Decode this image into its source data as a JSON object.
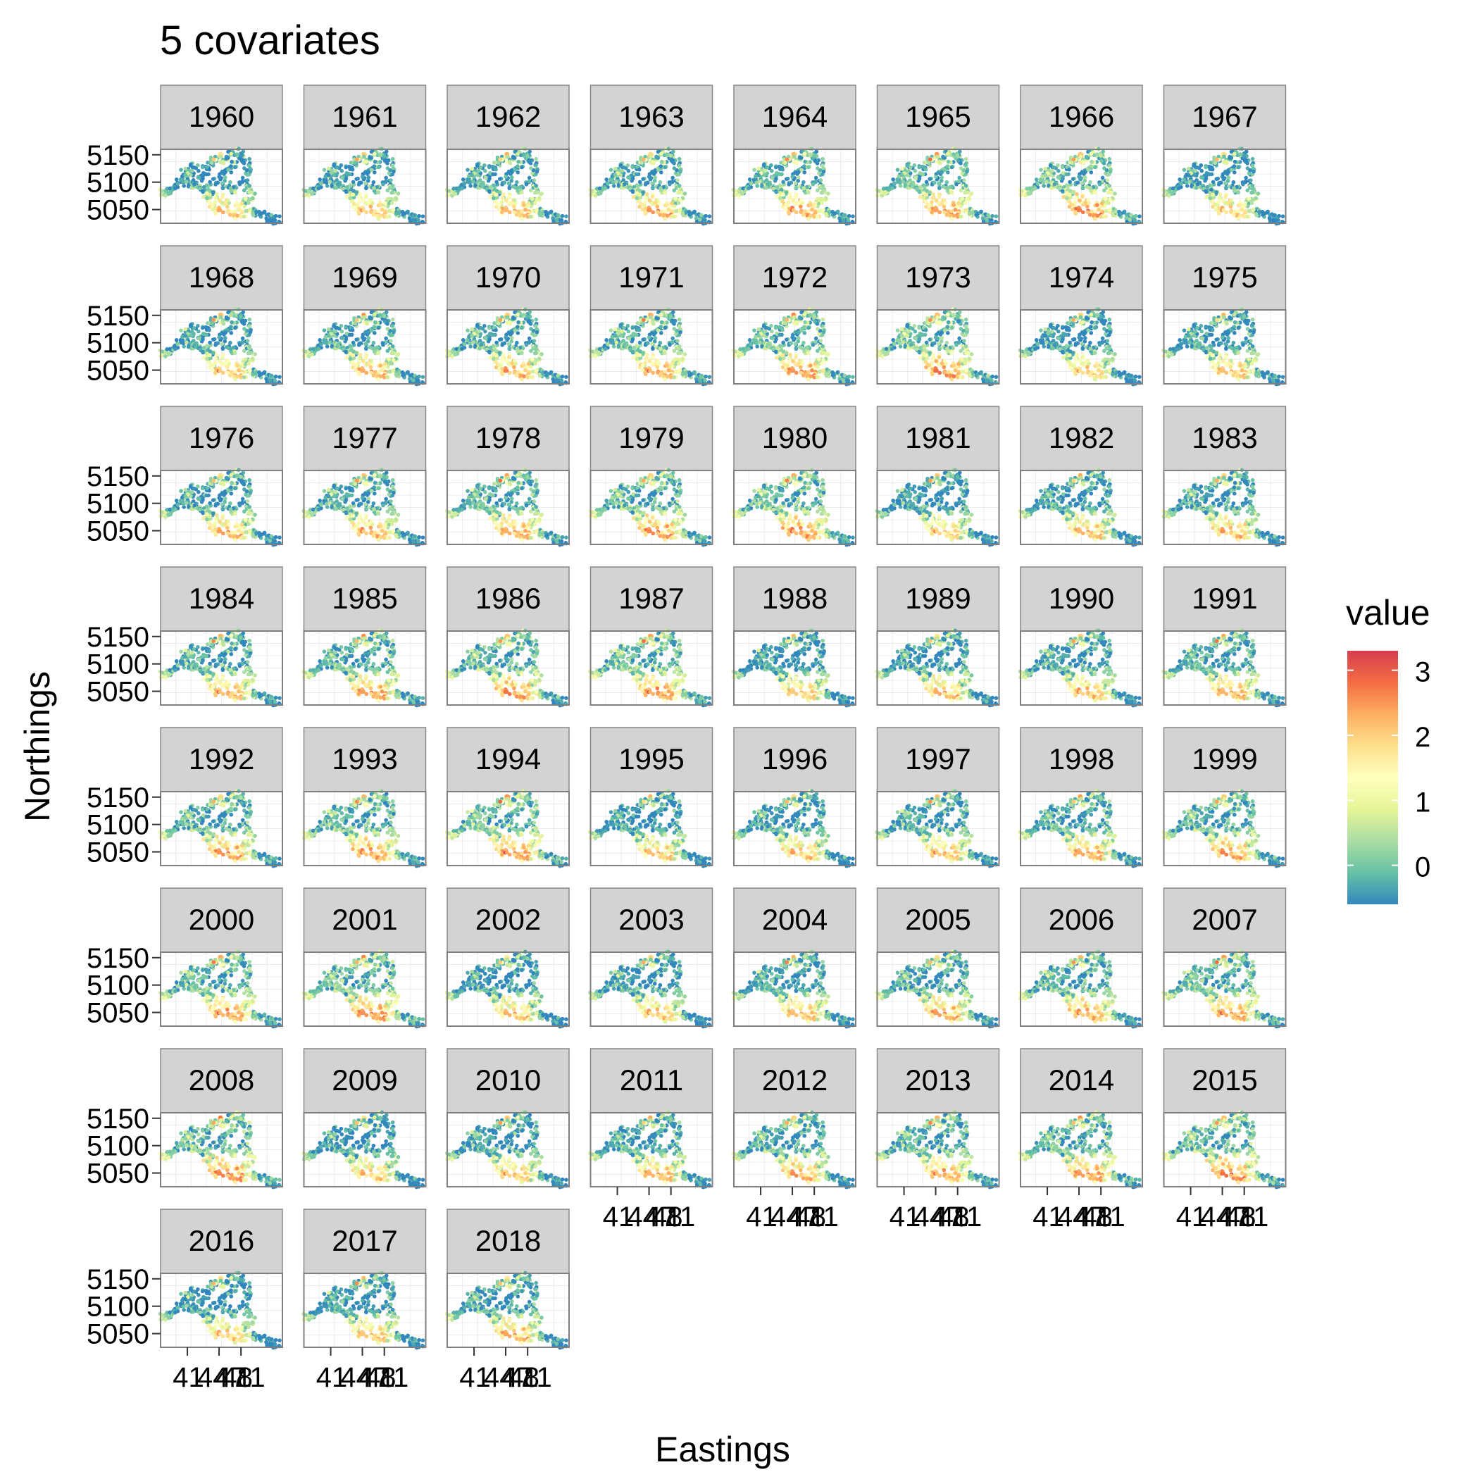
{
  "chart_data": {
    "type": "scatter",
    "title": "5 covariates",
    "xlabel": "Eastings",
    "ylabel": "Northings",
    "facet_variable": "year",
    "facets": [
      "1960",
      "1961",
      "1962",
      "1963",
      "1964",
      "1965",
      "1966",
      "1967",
      "1968",
      "1969",
      "1970",
      "1971",
      "1972",
      "1973",
      "1974",
      "1975",
      "1976",
      "1977",
      "1978",
      "1979",
      "1980",
      "1981",
      "1982",
      "1983",
      "1984",
      "1985",
      "1986",
      "1987",
      "1988",
      "1989",
      "1990",
      "1991",
      "1992",
      "1993",
      "1994",
      "1995",
      "1996",
      "1997",
      "1998",
      "1999",
      "2000",
      "2001",
      "2002",
      "2003",
      "2004",
      "2005",
      "2006",
      "2007",
      "2008",
      "2009",
      "2010",
      "2011",
      "2012",
      "2013",
      "2014",
      "2015",
      "2016",
      "2017",
      "2018"
    ],
    "ncol": 8,
    "y_ticks": [
      "5150",
      "5100",
      "5050"
    ],
    "y_tick_values": [
      5150,
      5100,
      5050
    ],
    "ylim": [
      5025,
      5160
    ],
    "x_tick_labels_overlapping": [
      "41",
      "44",
      "47",
      "48",
      "11"
    ],
    "xlim": [
      0,
      100
    ],
    "legend": {
      "title": "value",
      "position": "right",
      "ticks": [
        "3",
        "2",
        "1",
        "0"
      ],
      "tick_values": [
        3,
        2,
        1,
        0
      ],
      "range": [
        -0.6,
        3.3
      ],
      "colors": [
        "#d53e4f",
        "#f46d43",
        "#fdae61",
        "#fee08b",
        "#ffffbf",
        "#e6f598",
        "#abdda4",
        "#66c2a5",
        "#3288bd"
      ]
    },
    "panel_background": "#ffffff",
    "strip_background": "#d3d3d3",
    "grid": true
  }
}
